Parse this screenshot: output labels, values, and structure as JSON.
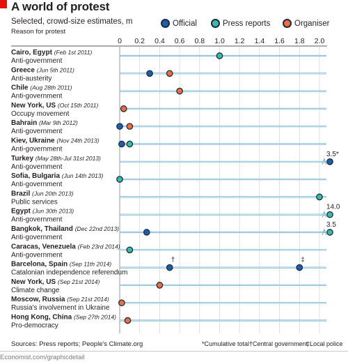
{
  "header": {
    "title": "A world of protest",
    "subtitle": "Selected, crowd-size estimates, m",
    "reason_label": "Reason for protest"
  },
  "colors": {
    "official": "#1f5fa6",
    "press": "#3dbaa6",
    "organiser": "#ef6f3c",
    "row_line": "#7db6cf",
    "accent_red": "#e3120b",
    "text": "#231f20"
  },
  "legend": [
    {
      "key": "official",
      "label": "Official"
    },
    {
      "key": "press",
      "label": "Press reports"
    },
    {
      "key": "organiser",
      "label": "Organiser"
    }
  ],
  "chart_data": {
    "type": "scatter",
    "title": "A world of protest",
    "subtitle": "Selected, crowd-size estimates, m",
    "x_ticks": [
      "0",
      "0.2",
      "0.4",
      "0.6",
      "0.8",
      "1.0",
      "1.2",
      "1.4",
      "1.6",
      "1.8",
      "2.0"
    ],
    "xlim": [
      0,
      2.0
    ],
    "rows": [
      {
        "place": "Cairo, Egypt",
        "date": "(Feb 1st 2011)",
        "reason": "Anti-government",
        "official": null,
        "press": 1.0,
        "organiser": null
      },
      {
        "place": "Greece",
        "date": "(Jun 5th 2011)",
        "reason": "Anti-austerity",
        "official": 0.3,
        "press": null,
        "organiser": 0.5
      },
      {
        "place": "Chile",
        "date": "(Aug 28th 2011)",
        "reason": "Anti-government",
        "official": null,
        "press": null,
        "organiser": 0.6
      },
      {
        "place": "New York, US",
        "date": "(Oct 15th 2011)",
        "reason": "Occupy movement",
        "official": null,
        "press": null,
        "organiser": 0.04
      },
      {
        "place": "Bahrain",
        "date": "(Mar 9th 2012)",
        "reason": "Anti-government",
        "official": 0.0,
        "press": null,
        "organiser": 0.1
      },
      {
        "place": "Kiev, Ukraine",
        "date": "(Nov 24th 2013)",
        "reason": "Anti-government",
        "official": 0.02,
        "press": 0.1,
        "organiser": null
      },
      {
        "place": "Turkey",
        "date": "(May 28th-Jul 31st 2013)",
        "reason": "Anti-government",
        "official": 3.5,
        "press": null,
        "organiser": null
      },
      {
        "place": "Sofia, Bulgaria",
        "date": "(Jun 14th 2013)",
        "reason": "Anti-government",
        "official": null,
        "press": 0.0,
        "organiser": null
      },
      {
        "place": "Brazil",
        "date": "(Jun 20th 2013)",
        "reason": "Public services",
        "official": null,
        "press": 2.0,
        "organiser": null
      },
      {
        "place": "Egypt",
        "date": "(Jun 30th 2013)",
        "reason": "Anti-government",
        "official": null,
        "press": 14.0,
        "organiser": null
      },
      {
        "place": "Bangkok, Thailand",
        "date": "(Dec 22nd 2013)",
        "reason": "Anti-government",
        "official": 0.27,
        "press": 3.5,
        "organiser": null
      },
      {
        "place": "Caracas, Venezuela",
        "date": "(Feb 23rd 2014)",
        "reason": "Anti-government",
        "official": null,
        "press": 0.1,
        "organiser": null
      },
      {
        "place": "Barcelona, Spain",
        "date": "(Sep 11th 2014)",
        "reason": "Catalonian independence referendum",
        "official": 0.5,
        "official2": 1.8,
        "press": null,
        "organiser": null
      },
      {
        "place": "New York, US",
        "date": "(Sep 21st 2014)",
        "reason": "Climate change",
        "official": null,
        "press": null,
        "organiser": 0.4
      },
      {
        "place": "Moscow, Russia",
        "date": "(Sep 21st 2014)",
        "reason": "Russia's involvement in Ukraine",
        "official": null,
        "press": null,
        "organiser": 0.02
      },
      {
        "place": "Hong Kong, China",
        "date": "(Sep 27th 2014)",
        "reason": "Pro-democracy",
        "official": null,
        "press": null,
        "organiser": 0.08
      }
    ],
    "annotations": [
      {
        "row": 6,
        "text": "3.5*"
      },
      {
        "row": 9,
        "text": "14.0"
      },
      {
        "row": 10,
        "text": "3.5"
      },
      {
        "row": 12,
        "marker": "official",
        "text": "†"
      },
      {
        "row": 12,
        "marker": "official2",
        "text": "‡"
      }
    ]
  },
  "footer": {
    "sources": "Sources: Press reports; People's Climate.org",
    "credit": "Economist.com/graphicdetail",
    "notes": [
      "*Cumulative total",
      "†Central government",
      "‡Local police"
    ]
  }
}
